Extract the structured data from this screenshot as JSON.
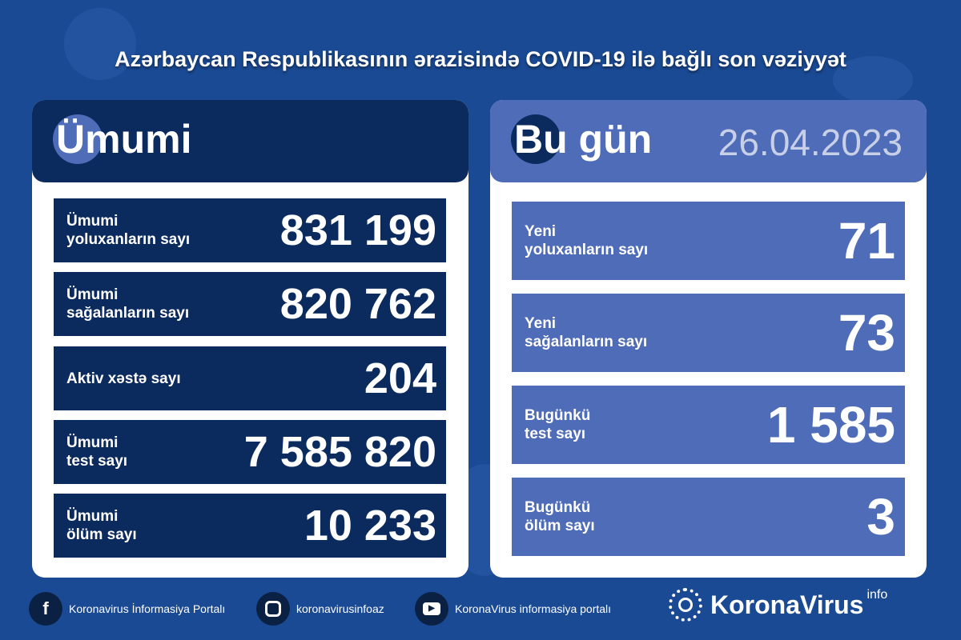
{
  "title": "Azərbaycan Respublikasının ərazisində COVID-19 ilə bağlı son vəziyyət",
  "colors": {
    "background": "#1a4a94",
    "dark_panel": "#0b2a5e",
    "light_panel": "#4f6cb8",
    "date": "#c8d0e8"
  },
  "total": {
    "heading": "Ümumi",
    "rows": [
      {
        "label1": "Ümumi",
        "label2": "yoluxanların sayı",
        "value": "831 199"
      },
      {
        "label1": "Ümumi",
        "label2": "sağalanların sayı",
        "value": "820 762"
      },
      {
        "label1": "Aktiv xəstə sayı",
        "label2": "",
        "value": "204"
      },
      {
        "label1": "Ümumi",
        "label2": "test sayı",
        "value": "7 585 820"
      },
      {
        "label1": "Ümumi",
        "label2": "ölüm sayı",
        "value": "10 233"
      }
    ]
  },
  "today": {
    "heading": "Bu gün",
    "date": "26.04.2023",
    "rows": [
      {
        "label1": "Yeni",
        "label2": "yoluxanların sayı",
        "value": "71"
      },
      {
        "label1": "Yeni",
        "label2": "sağalanların sayı",
        "value": "73"
      },
      {
        "label1": "Bugünkü",
        "label2": "test sayı",
        "value": "1 585"
      },
      {
        "label1": "Bugünkü",
        "label2": "ölüm sayı",
        "value": "3"
      }
    ]
  },
  "footer": {
    "facebook": "Koronavirus İnformasiya Portalı",
    "instagram": "koronavirusinfoaz",
    "youtube": "KoronaVirus informasiya portalı",
    "logo": "KoronaVirus",
    "logo_sup": "info"
  }
}
